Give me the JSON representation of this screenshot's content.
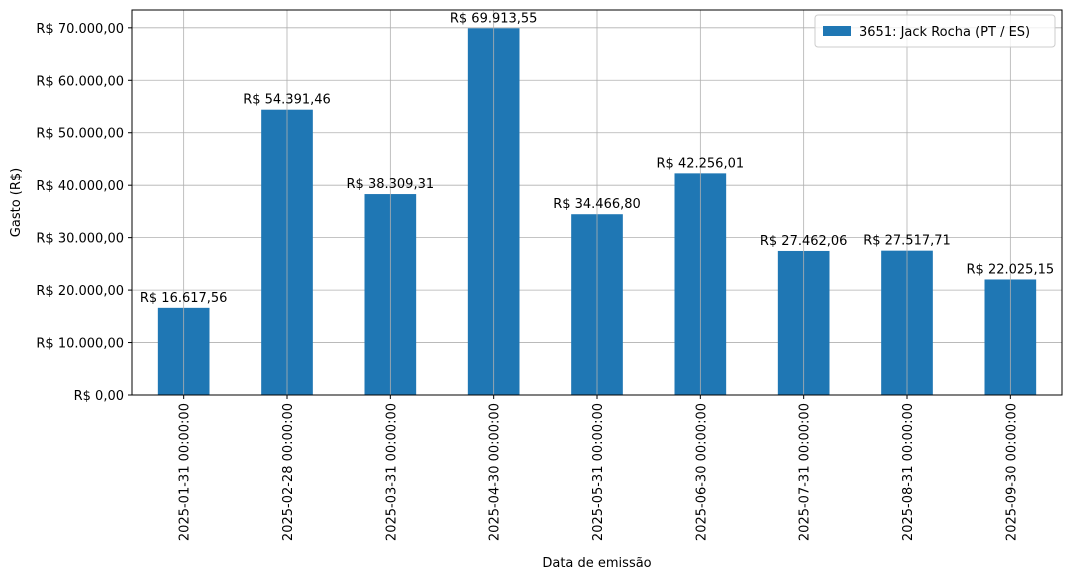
{
  "chart_data": {
    "type": "bar",
    "title": "",
    "xlabel": "Data de emissão",
    "ylabel": "Gasto (R$)",
    "categories": [
      "2025-01-31 00:00:00",
      "2025-02-28 00:00:00",
      "2025-03-31 00:00:00",
      "2025-04-30 00:00:00",
      "2025-05-31 00:00:00",
      "2025-06-30 00:00:00",
      "2025-07-31 00:00:00",
      "2025-08-31 00:00:00",
      "2025-09-30 00:00:00"
    ],
    "series": [
      {
        "name": "3651: Jack Rocha (PT / ES)",
        "color": "#1f77b4",
        "values": [
          16617.56,
          54391.46,
          38309.31,
          69913.55,
          34466.8,
          42256.01,
          27462.06,
          27517.71,
          22025.15
        ],
        "value_labels": [
          "R$ 16.617,56",
          "R$ 54.391,46",
          "R$ 38.309,31",
          "R$ 69.913,55",
          "R$ 34.466,80",
          "R$ 42.256,01",
          "R$ 27.462,06",
          "R$ 27.517,71",
          "R$ 22.025,15"
        ]
      }
    ],
    "yticks": [
      0,
      10000,
      20000,
      30000,
      40000,
      50000,
      60000,
      70000
    ],
    "ytick_labels": [
      "R$ 0,00",
      "R$ 10.000,00",
      "R$ 20.000,00",
      "R$ 30.000,00",
      "R$ 40.000,00",
      "R$ 50.000,00",
      "R$ 60.000,00",
      "R$ 70.000,00"
    ],
    "ylim": [
      0,
      73400
    ],
    "grid": true,
    "legend_position": "top-right"
  }
}
